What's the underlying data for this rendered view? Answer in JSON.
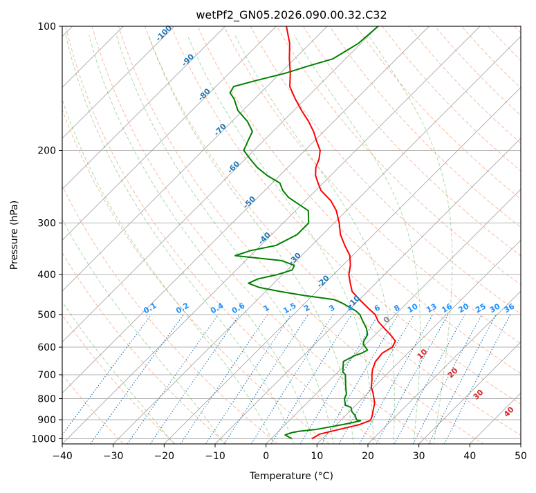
{
  "chart_data": {
    "type": "skew-t",
    "title": "wetPf2_GN05.2026.090.00.32.C32",
    "xlabel": "Temperature (°C)",
    "ylabel": "Pressure (hPa)",
    "xlim": [
      -40,
      50
    ],
    "ylim": [
      1030,
      100
    ],
    "x_ticks": [
      -40,
      -30,
      -20,
      -10,
      0,
      10,
      20,
      30,
      40,
      50
    ],
    "x_tick_labels": [
      "−40",
      "−30",
      "−20",
      "−10",
      "0",
      "10",
      "20",
      "30",
      "40",
      "50"
    ],
    "y_ticks": [
      100,
      200,
      300,
      400,
      500,
      600,
      700,
      800,
      900,
      1000
    ],
    "y_tick_labels": [
      "100",
      "200",
      "300",
      "400",
      "500",
      "600",
      "700",
      "800",
      "900",
      "1000"
    ],
    "colors": {
      "temperature": "#ff0000",
      "dewpoint": "#008000",
      "isotherm": "#808080",
      "dry_adiabat": "#f4a582",
      "moist_adiabat": "#2ca02c",
      "mixing_ratio": "#1f77b4",
      "isotherm_label": "#1f77b4",
      "moist_label_pos": "#d62728",
      "moist_label_zero": "#808080",
      "mix_label": "#1e90ff"
    },
    "series": [
      {
        "name": "Temperature",
        "pressure": [
          1000,
          975,
          950,
          925,
          905,
          900,
          880,
          850,
          820,
          800,
          775,
          750,
          720,
          700,
          680,
          650,
          630,
          620,
          600,
          580,
          560,
          540,
          520,
          500,
          480,
          460,
          440,
          420,
          400,
          380,
          360,
          340,
          320,
          300,
          280,
          265,
          250,
          240,
          230,
          220,
          210,
          200,
          190,
          180,
          170,
          160,
          150,
          140,
          130,
          120,
          110,
          100
        ],
        "values": [
          8.0,
          8.6,
          11.5,
          14.5,
          15.8,
          15.8,
          15.3,
          14.3,
          13.3,
          12.3,
          11.0,
          9.5,
          8.2,
          7.2,
          6.3,
          5.3,
          5.1,
          5.0,
          5.8,
          5.2,
          3.0,
          0.5,
          -2.0,
          -4.0,
          -7.0,
          -10.0,
          -13.0,
          -15.0,
          -17.0,
          -18.5,
          -20.5,
          -23.5,
          -26.5,
          -29.0,
          -32.0,
          -35.0,
          -39.0,
          -41.0,
          -43.0,
          -44.5,
          -45.5,
          -47.0,
          -49.5,
          -52.0,
          -55.0,
          -58.5,
          -62.0,
          -65.5,
          -68.0,
          -71.0,
          -74.0,
          -78.0
        ]
      },
      {
        "name": "Dewpoint",
        "pressure": [
          1000,
          990,
          980,
          972,
          966,
          960,
          955,
          950,
          935,
          920,
          905,
          900,
          880,
          860,
          840,
          830,
          810,
          800,
          780,
          760,
          740,
          720,
          700,
          690,
          670,
          650,
          630,
          620,
          610,
          600,
          590,
          580,
          560,
          540,
          520,
          500,
          490,
          480,
          470,
          460,
          450,
          440,
          430,
          420,
          410,
          400,
          390,
          380,
          370,
          360,
          350,
          340,
          320,
          300,
          280,
          260,
          250,
          240,
          230,
          220,
          210,
          200,
          190,
          180,
          170,
          160,
          150,
          145,
          140,
          135,
          130,
          125,
          120,
          110,
          100
        ],
        "values": [
          4.0,
          3.0,
          2.0,
          2.5,
          3.0,
          4.0,
          5.5,
          7.0,
          9.5,
          12.0,
          14.0,
          13.0,
          12.0,
          10.5,
          9.5,
          8.0,
          7.0,
          6.5,
          6.0,
          5.0,
          4.0,
          3.0,
          2.0,
          1.0,
          0.0,
          -1.0,
          0.0,
          1.0,
          1.5,
          0.5,
          -0.5,
          -1.0,
          -1.5,
          -3.0,
          -5.0,
          -7.0,
          -8.5,
          -10.5,
          -12.5,
          -15.0,
          -21.5,
          -27.0,
          -32.0,
          -35.0,
          -34.0,
          -31.0,
          -29.0,
          -29.5,
          -33.0,
          -43.0,
          -41.0,
          -37.0,
          -35.0,
          -35.0,
          -37.5,
          -44.0,
          -46.5,
          -48.5,
          -52.5,
          -56.0,
          -59.0,
          -62.0,
          -63.0,
          -64.0,
          -67.0,
          -71.0,
          -74.0,
          -76.0,
          -76.5,
          -73.0,
          -69.0,
          -66.0,
          -62.5,
          -60.5,
          -60.0
        ]
      }
    ],
    "isotherm_labels": [
      {
        "label": "-100",
        "t": -100
      },
      {
        "label": "-90",
        "t": -90
      },
      {
        "label": "-80",
        "t": -80
      },
      {
        "label": "-70",
        "t": -70
      },
      {
        "label": "-60",
        "t": -60
      },
      {
        "label": "-50",
        "t": -50
      },
      {
        "label": "-40",
        "t": -40
      },
      {
        "label": "-30",
        "t": -30
      },
      {
        "label": "-20",
        "t": -20
      },
      {
        "label": "-10",
        "t": -10
      }
    ],
    "mixing_ratio_labels": [
      "0.1",
      "0.2",
      "0.4",
      "0.6",
      "1",
      "1.5",
      "2",
      "3",
      "4",
      "6",
      "8",
      "10",
      "13",
      "16",
      "20",
      "25",
      "30",
      "36"
    ],
    "moist_adiabat_labels": [
      "0",
      "10",
      "20",
      "30",
      "40"
    ]
  }
}
